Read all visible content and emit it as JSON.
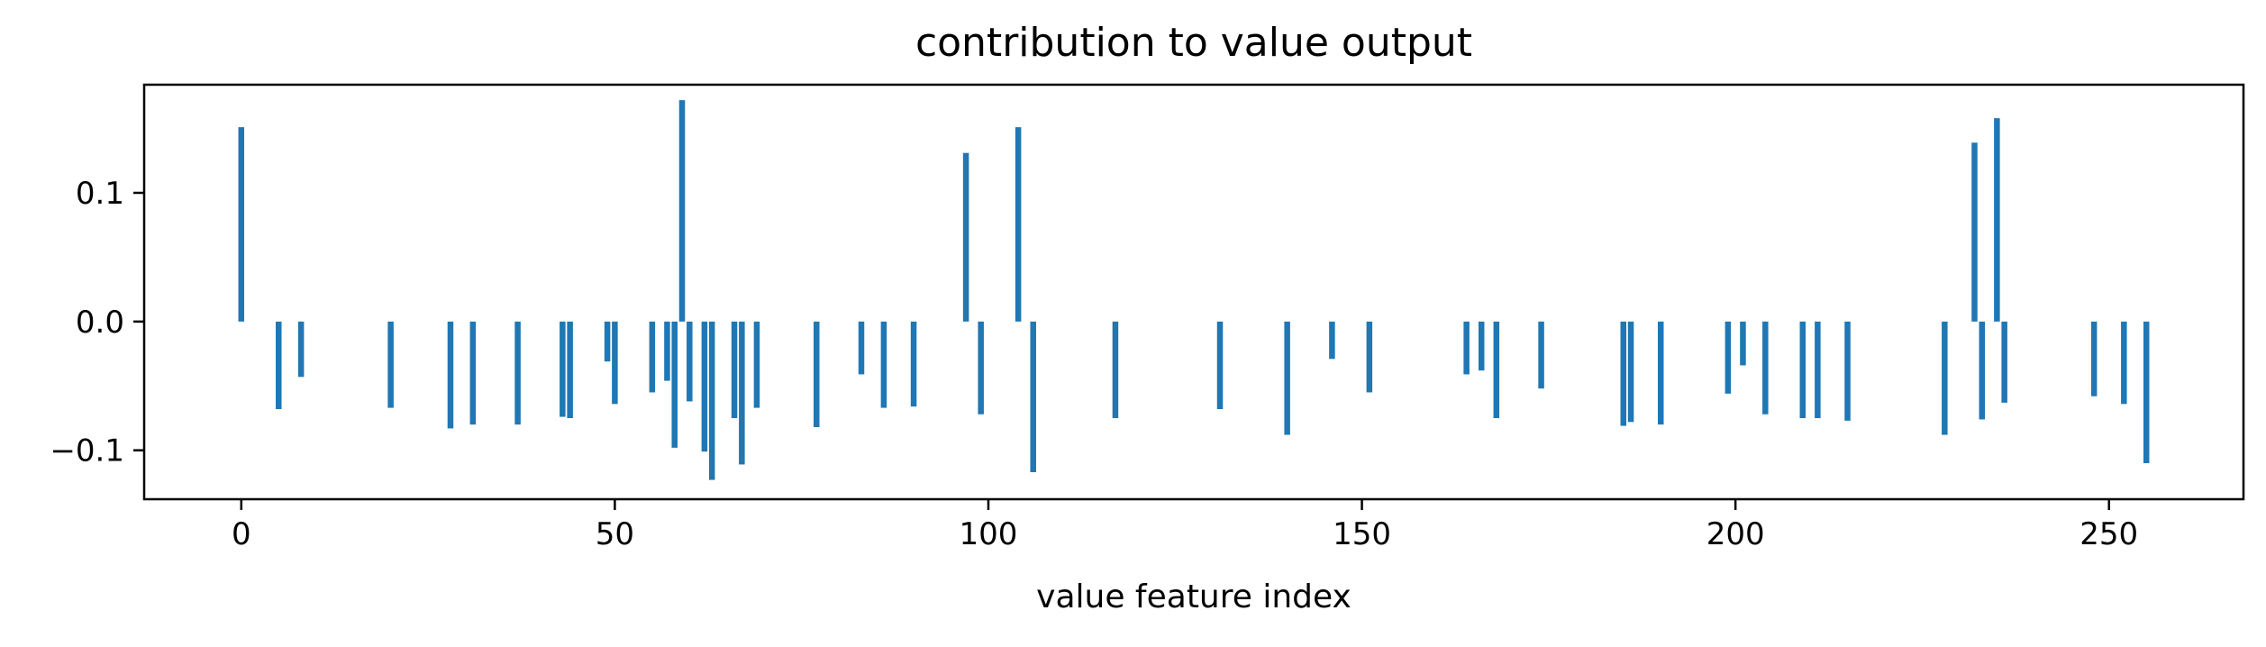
{
  "chart_data": {
    "type": "bar",
    "title": "contribution to value output",
    "xlabel": "value feature index",
    "ylabel": "",
    "xlim": [
      -13,
      268
    ],
    "ylim": [
      -0.138,
      0.184
    ],
    "xticks": [
      0,
      50,
      100,
      150,
      200,
      250
    ],
    "yticks": [
      -0.1,
      0.0,
      0.1
    ],
    "ytick_labels": [
      "−0.1",
      "0.0",
      "0.1"
    ],
    "grid": false,
    "legend": "none",
    "color": "#1f77b4",
    "x": [
      0,
      5,
      8,
      20,
      28,
      31,
      37,
      43,
      44,
      49,
      50,
      55,
      57,
      58,
      59,
      60,
      62,
      63,
      66,
      67,
      69,
      77,
      83,
      86,
      90,
      97,
      99,
      104,
      106,
      117,
      131,
      140,
      146,
      151,
      164,
      166,
      168,
      174,
      185,
      186,
      190,
      199,
      201,
      204,
      209,
      211,
      215,
      228,
      232,
      233,
      235,
      236,
      248,
      252,
      255
    ],
    "values": [
      0.151,
      -0.068,
      -0.043,
      -0.067,
      -0.083,
      -0.08,
      -0.08,
      -0.074,
      -0.075,
      -0.031,
      -0.064,
      -0.055,
      -0.046,
      -0.098,
      0.172,
      -0.062,
      -0.101,
      -0.123,
      -0.075,
      -0.111,
      -0.067,
      -0.082,
      -0.041,
      -0.067,
      -0.066,
      0.131,
      -0.072,
      0.151,
      -0.117,
      -0.075,
      -0.068,
      -0.088,
      -0.029,
      -0.055,
      -0.041,
      -0.038,
      -0.075,
      -0.052,
      -0.081,
      -0.078,
      -0.08,
      -0.056,
      -0.034,
      -0.072,
      -0.075,
      -0.075,
      -0.077,
      -0.088,
      0.139,
      -0.076,
      0.158,
      -0.063,
      -0.058,
      -0.064,
      -0.11
    ]
  }
}
